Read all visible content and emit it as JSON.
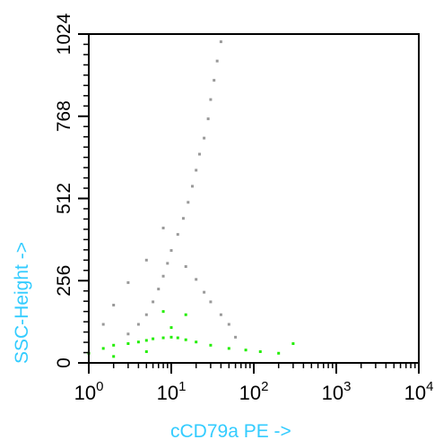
{
  "chart_data": {
    "type": "scatter",
    "title": "",
    "xlabel": "cCD79a PE ->",
    "ylabel": "SSC-Height ->",
    "x_scale": "log",
    "xlim": [
      1,
      10000
    ],
    "ylim": [
      0,
      1024
    ],
    "x_ticks": [
      {
        "base": "10",
        "exp": "0"
      },
      {
        "base": "10",
        "exp": "1"
      },
      {
        "base": "10",
        "exp": "2"
      },
      {
        "base": "10",
        "exp": "3"
      },
      {
        "base": "10",
        "exp": "4"
      }
    ],
    "y_ticks": [
      "0",
      "256",
      "512",
      "768",
      "1024"
    ],
    "label_color": "#33ccff",
    "grid": false,
    "series": [
      {
        "color": "#999999",
        "points": [
          [
            3,
            90
          ],
          [
            4,
            120
          ],
          [
            5,
            150
          ],
          [
            6,
            190
          ],
          [
            7,
            230
          ],
          [
            8,
            270
          ],
          [
            9,
            310
          ],
          [
            10,
            350
          ],
          [
            12,
            400
          ],
          [
            14,
            450
          ],
          [
            16,
            500
          ],
          [
            18,
            550
          ],
          [
            20,
            600
          ],
          [
            22,
            650
          ],
          [
            25,
            700
          ],
          [
            28,
            760
          ],
          [
            30,
            820
          ],
          [
            33,
            880
          ],
          [
            36,
            940
          ],
          [
            40,
            1000
          ],
          [
            15,
            300
          ],
          [
            20,
            260
          ],
          [
            25,
            220
          ],
          [
            30,
            190
          ],
          [
            40,
            150
          ],
          [
            50,
            120
          ],
          [
            2,
            180
          ],
          [
            3,
            250
          ],
          [
            1.5,
            120
          ],
          [
            5,
            320
          ],
          [
            8,
            420
          ],
          [
            60,
            80
          ]
        ]
      },
      {
        "color": "#22ee00",
        "points": [
          [
            1,
            30
          ],
          [
            1.5,
            45
          ],
          [
            2,
            55
          ],
          [
            3,
            60
          ],
          [
            4,
            65
          ],
          [
            5,
            70
          ],
          [
            6,
            75
          ],
          [
            8,
            78
          ],
          [
            10,
            80
          ],
          [
            12,
            78
          ],
          [
            15,
            72
          ],
          [
            20,
            65
          ],
          [
            30,
            55
          ],
          [
            50,
            45
          ],
          [
            80,
            40
          ],
          [
            120,
            35
          ],
          [
            200,
            30
          ],
          [
            300,
            60
          ],
          [
            2,
            20
          ],
          [
            5,
            35
          ],
          [
            10,
            110
          ],
          [
            15,
            150
          ],
          [
            8,
            160
          ]
        ]
      }
    ]
  }
}
